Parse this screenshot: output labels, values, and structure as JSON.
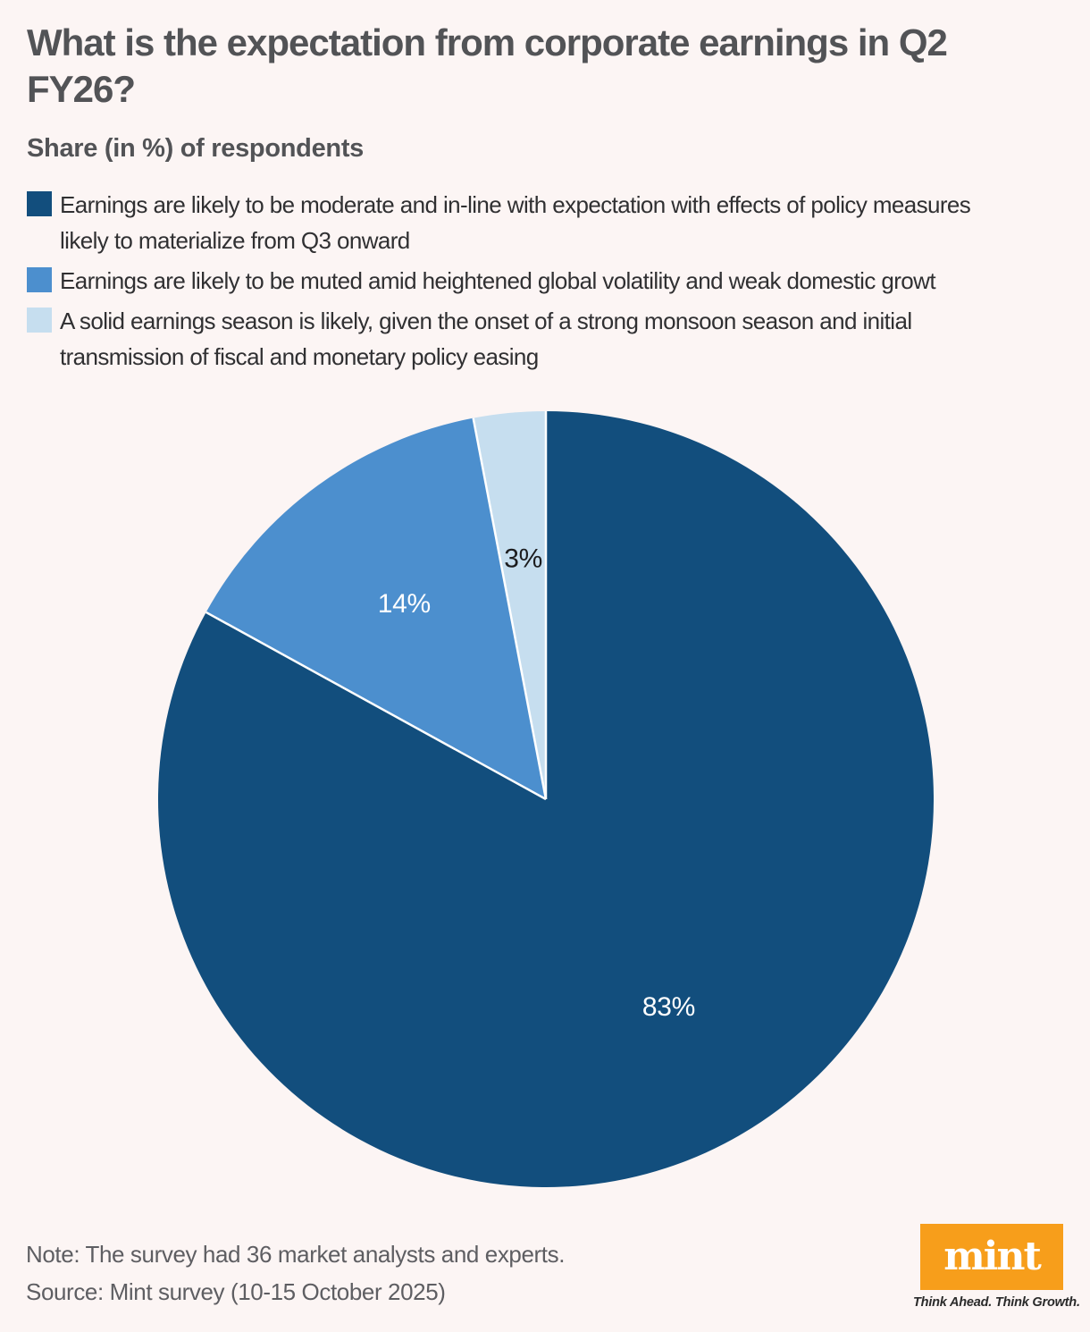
{
  "header": {
    "title": "What is the expectation from corporate earnings in Q2\nFY26?",
    "subtitle": "Share (in %) of respondents"
  },
  "legend": {
    "items": [
      {
        "label": "Earnings are likely to be moderate and in-line with expectation with effects of policy measures\nlikely to materialize from Q3 onward",
        "color": "#124E7D"
      },
      {
        "label": "Earnings are likely to be muted amid heightened global volatility and weak domestic growt",
        "color": "#4C8FCE"
      },
      {
        "label": "A solid earnings season is likely, given the onset of a strong monsoon season and initial\ntransmission of fiscal and monetary policy easing",
        "color": "#C6DEEF"
      }
    ]
  },
  "chart_data": {
    "type": "pie",
    "title": "What is the expectation from corporate earnings in Q2 FY26?",
    "unit": "Share (in %) of respondents",
    "categories": [
      "Earnings are likely to be moderate and in-line with expectation with effects of policy measures likely to materialize from Q3 onward",
      "Earnings are likely to be muted amid heightened global volatility and weak domestic growt",
      "A solid earnings season is likely, given the onset of a strong monsoon season and initial transmission of fiscal and monetary policy easing"
    ],
    "values": [
      83,
      14,
      3
    ],
    "slice_labels": [
      "83%",
      "14%",
      "3%"
    ],
    "colors": [
      "#124E7D",
      "#4C8FCE",
      "#C6DEEF"
    ],
    "label_colors": [
      "#FFFFFF",
      "#FFFFFF",
      "#1C1C1E"
    ],
    "separator_color": "#FFFFFF",
    "start_angle_deg": 0,
    "direction": "clockwise",
    "legend_position": "top"
  },
  "footer": {
    "note": "Note: The survey had 36 market analysts and experts.",
    "source": "Source: Mint survey (10-15 October 2025)",
    "logo": {
      "text": "mint",
      "tagline": "Think Ahead. Think Growth.",
      "background": "#F79E1B"
    }
  }
}
